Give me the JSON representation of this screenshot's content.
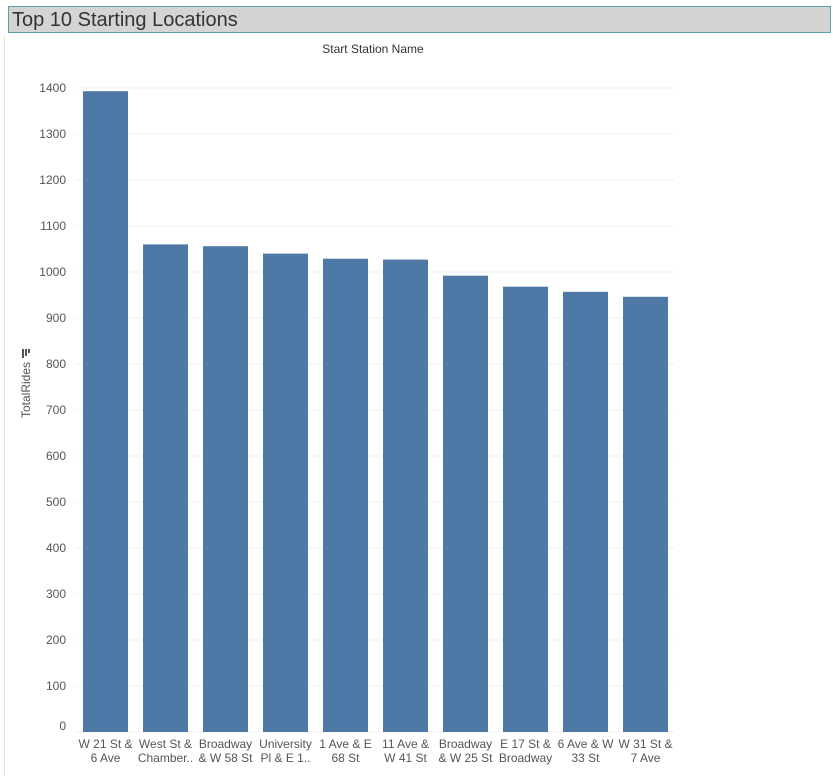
{
  "dashboard": {
    "title": "Top 10 Starting Locations"
  },
  "colors": {
    "bar": "#4e79a7",
    "title_bg": "#d4d4d4",
    "title_border": "#5b9ea6",
    "gridline": "#f0f0f0"
  },
  "icons": {
    "sort": "sort-descending-icon"
  },
  "chart_data": {
    "type": "bar",
    "title": "",
    "column_header": "Start Station Name",
    "xlabel": "",
    "ylabel": "TotalRides",
    "ylim": [
      0,
      1400
    ],
    "yticks": [
      0,
      100,
      200,
      300,
      400,
      500,
      600,
      700,
      800,
      900,
      1000,
      1100,
      1200,
      1300,
      1400
    ],
    "grid": true,
    "categories": [
      [
        "W 21 St &",
        "6 Ave"
      ],
      [
        "West St &",
        "Chamber.."
      ],
      [
        "Broadway",
        "& W 58 St"
      ],
      [
        "University",
        "Pl & E 1.."
      ],
      [
        "1 Ave & E",
        "68 St"
      ],
      [
        "11 Ave &",
        "W 41 St"
      ],
      [
        "Broadway",
        "& W 25 St"
      ],
      [
        "E 17 St &",
        "Broadway"
      ],
      [
        "6 Ave & W",
        "33 St"
      ],
      [
        "W 31 St &",
        "7 Ave"
      ]
    ],
    "values": [
      1393,
      1060,
      1056,
      1040,
      1029,
      1027,
      992,
      968,
      957,
      946
    ]
  }
}
